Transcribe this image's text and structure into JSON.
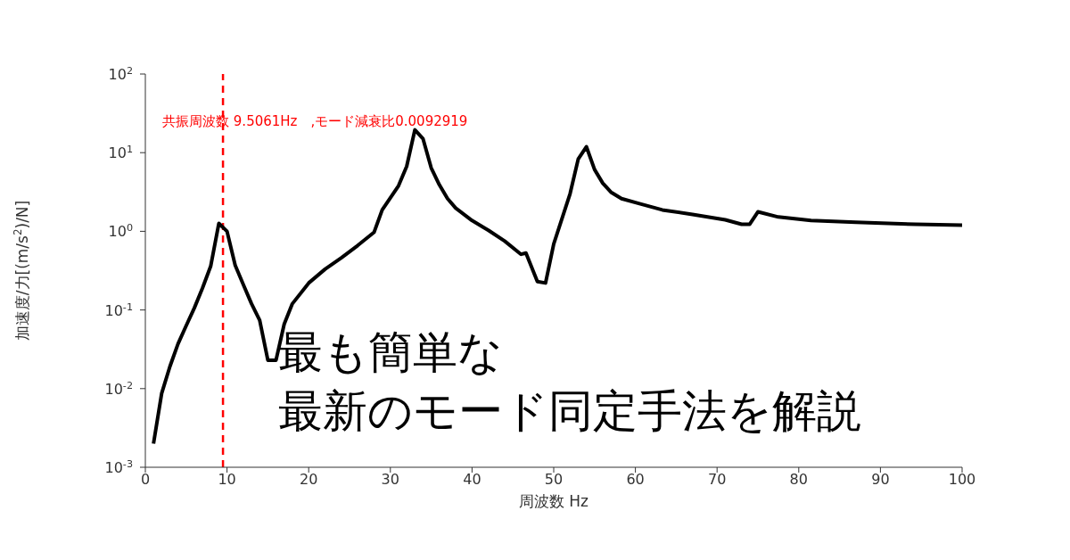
{
  "chart_data": {
    "type": "line",
    "xlabel": "周波数 Hz",
    "ylabel": "加速度/力[(m/s$^{2}$)/N]",
    "x": [
      1,
      2,
      3,
      4,
      5,
      6,
      7,
      8,
      9,
      10,
      11,
      12,
      13,
      14,
      15,
      16,
      17,
      18,
      20,
      22,
      24,
      26,
      28,
      29,
      31,
      32,
      33,
      34,
      35,
      36,
      37,
      38,
      40,
      42,
      44,
      46,
      46.6,
      48,
      49,
      50,
      52,
      53,
      54,
      55,
      56,
      57,
      58.3,
      60.5,
      63.3,
      67,
      71,
      73,
      74,
      75,
      77.5,
      81.5,
      87,
      94.3,
      100
    ],
    "series": [
      {
        "color": "#000000",
        "values": [
          0.002,
          0.0087,
          0.019,
          0.037,
          0.063,
          0.106,
          0.19,
          0.36,
          1.26,
          1.0,
          0.37,
          0.21,
          0.12,
          0.074,
          0.023,
          0.023,
          0.066,
          0.12,
          0.22,
          0.33,
          0.46,
          0.66,
          0.97,
          1.87,
          3.8,
          6.7,
          19.5,
          15,
          6.4,
          3.9,
          2.6,
          1.97,
          1.37,
          1.03,
          0.75,
          0.51,
          0.53,
          0.23,
          0.22,
          0.69,
          3.0,
          8.3,
          11.9,
          6.1,
          4.1,
          3.15,
          2.6,
          2.25,
          1.87,
          1.64,
          1.4,
          1.23,
          1.23,
          1.77,
          1.52,
          1.37,
          1.3,
          1.23,
          1.2
        ]
      }
    ],
    "xlim": [
      0,
      100
    ],
    "xticks": [
      0,
      10,
      20,
      30,
      40,
      50,
      60,
      70,
      80,
      90,
      100
    ],
    "ylim": [
      0.001,
      100
    ],
    "yticks": [
      {
        "value": 0.001,
        "label": "10$^{-3}$"
      },
      {
        "value": 0.01,
        "label": "10$^{-2}$"
      },
      {
        "value": 0.1,
        "label": "10$^{-1}$"
      },
      {
        "value": 1,
        "label": "10$^{0}$"
      },
      {
        "value": 10,
        "label": "10$^{1}$"
      },
      {
        "value": 100,
        "label": "10$^{2}$"
      }
    ],
    "log": "y",
    "grid": false,
    "legend": false,
    "marker": "none",
    "line_style": "solid",
    "ref_lines": [
      {
        "axis": "x",
        "value": 9.5061,
        "label": "共振周波数 9.5061Hz　,モード減衰比0.0092919",
        "color": "#ff0000",
        "line_style": "dashed"
      }
    ],
    "annotations": [
      "最も簡単な",
      "最新のモード同定手法を解説"
    ]
  }
}
